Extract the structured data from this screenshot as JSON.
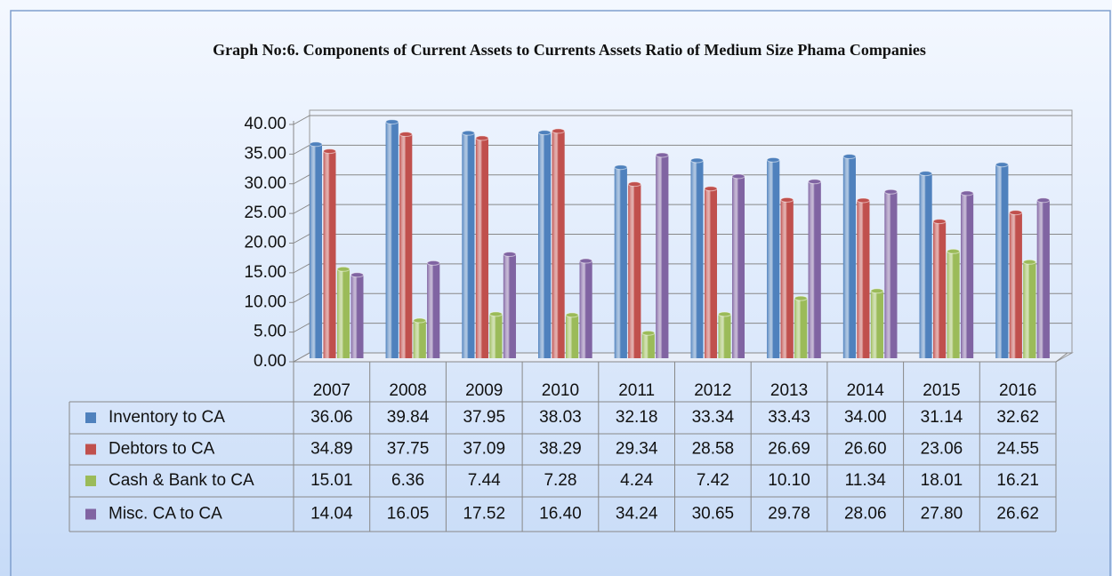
{
  "chart_data": {
    "type": "bar",
    "title": "Graph No:6. Components of Current Assets to Currents Assets Ratio of Medium Size Phama Companies",
    "categories": [
      "2007",
      "2008",
      "2009",
      "2010",
      "2011",
      "2012",
      "2013",
      "2014",
      "2015",
      "2016"
    ],
    "series": [
      {
        "name": "Inventory to CA",
        "color": "#4f81bd",
        "values": [
          36.06,
          39.84,
          37.95,
          38.03,
          32.18,
          33.34,
          33.43,
          34.0,
          31.14,
          32.62
        ],
        "value_labels": [
          "36.06",
          "39.84",
          "37.95",
          "38.03",
          "32.18",
          "33.34",
          "33.43",
          "34.00",
          "31.14",
          "32.62"
        ]
      },
      {
        "name": "Debtors to CA",
        "color": "#c0504d",
        "values": [
          34.89,
          37.75,
          37.09,
          38.29,
          29.34,
          28.58,
          26.69,
          26.6,
          23.06,
          24.55
        ],
        "value_labels": [
          "34.89",
          "37.75",
          "37.09",
          "38.29",
          "29.34",
          "28.58",
          "26.69",
          "26.60",
          "23.06",
          "24.55"
        ]
      },
      {
        "name": "Cash & Bank to CA",
        "color": "#9bbb59",
        "values": [
          15.01,
          6.36,
          7.44,
          7.28,
          4.24,
          7.42,
          10.1,
          11.34,
          18.01,
          16.21
        ],
        "value_labels": [
          "15.01",
          "6.36",
          "7.44",
          "7.28",
          "4.24",
          "7.42",
          "10.10",
          "11.34",
          "18.01",
          "16.21"
        ]
      },
      {
        "name": "Misc. CA to CA",
        "color": "#8064a2",
        "values": [
          14.04,
          16.05,
          17.52,
          16.4,
          34.24,
          30.65,
          29.78,
          28.06,
          27.8,
          26.62
        ],
        "value_labels": [
          "14.04",
          "16.05",
          "17.52",
          "16.40",
          "34.24",
          "30.65",
          "29.78",
          "28.06",
          "27.80",
          "26.62"
        ]
      }
    ],
    "ylim": [
      0,
      40
    ],
    "yticks": [
      {
        "value": 0,
        "label": "0.00"
      },
      {
        "value": 5,
        "label": "5.00"
      },
      {
        "value": 10,
        "label": "10.00"
      },
      {
        "value": 15,
        "label": "15.00"
      },
      {
        "value": 20,
        "label": "20.00"
      },
      {
        "value": 25,
        "label": "25.00"
      },
      {
        "value": 30,
        "label": "30.00"
      },
      {
        "value": 35,
        "label": "35.00"
      },
      {
        "value": 40,
        "label": "40.00"
      }
    ],
    "grid": true
  }
}
